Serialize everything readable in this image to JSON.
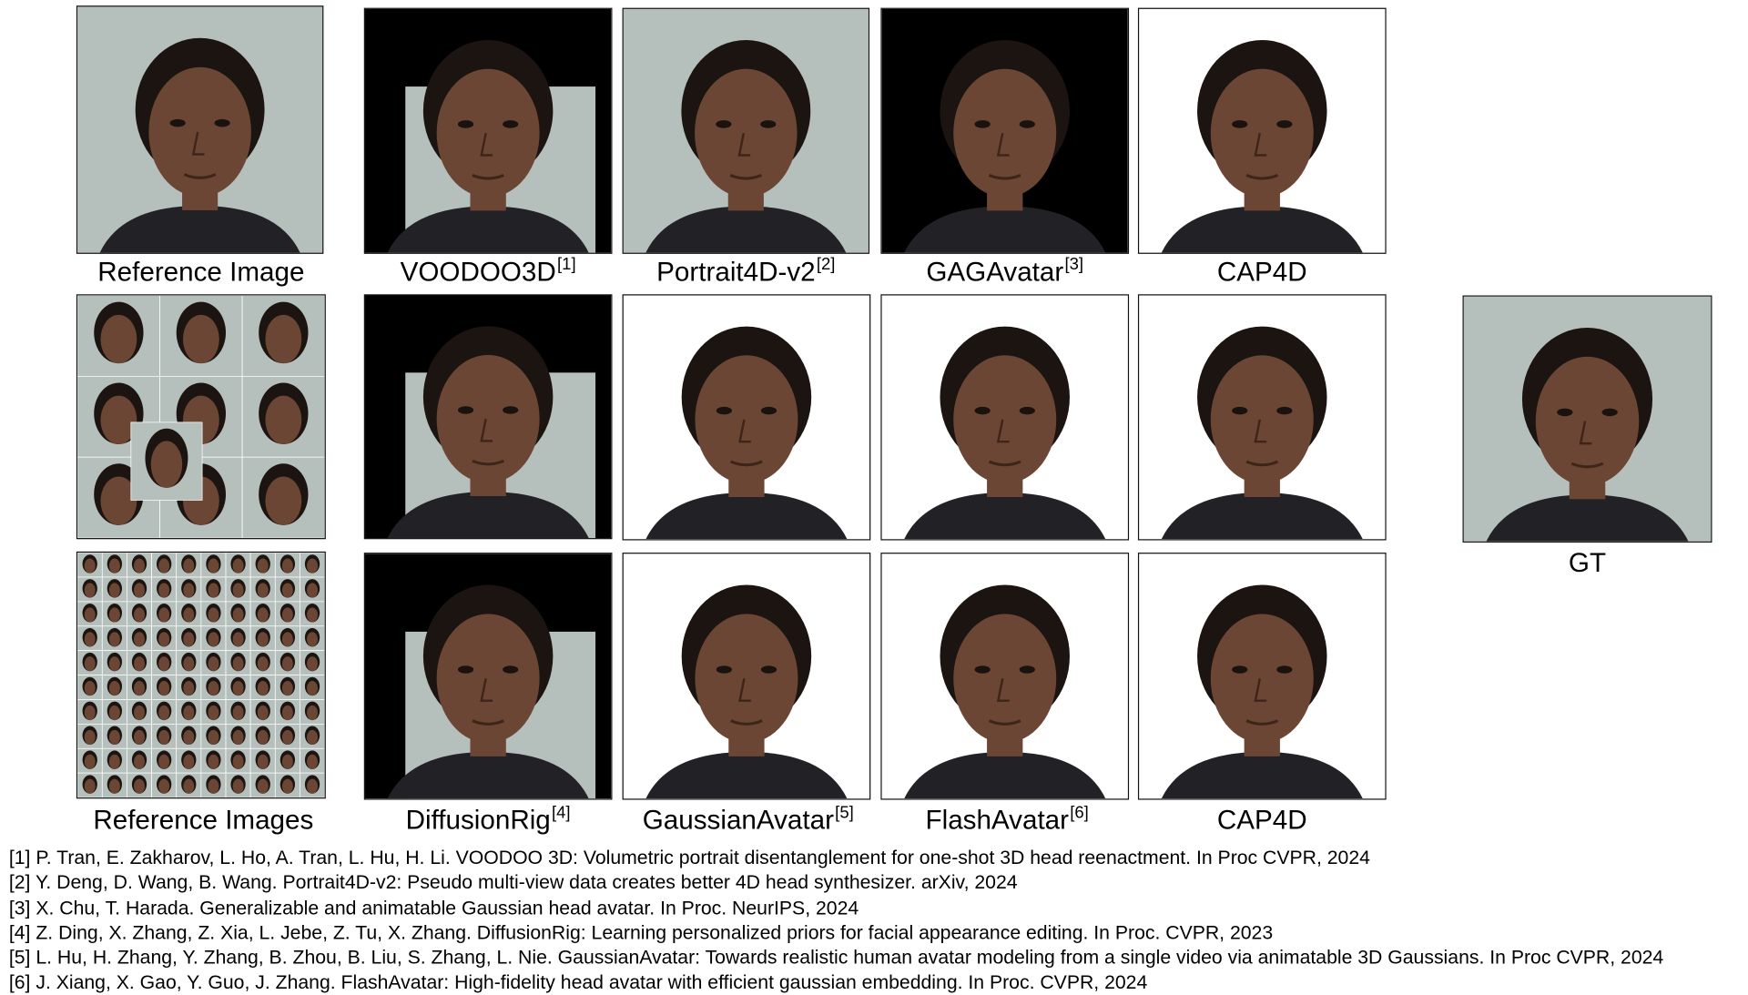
{
  "figure": {
    "rows": [
      {
        "reference_label": "Reference Image",
        "methods": [
          {
            "name": "VOODOO3D",
            "ref": "[1]"
          },
          {
            "name": "Portrait4D-v2",
            "ref": "[2]"
          },
          {
            "name": "GAGAvatar",
            "ref": "[3]"
          },
          {
            "name": "CAP4D",
            "ref": ""
          }
        ]
      },
      {
        "reference_label": "",
        "methods": []
      },
      {
        "reference_label": "Reference Images",
        "methods": [
          {
            "name": "DiffusionRig",
            "ref": "[4]"
          },
          {
            "name": "GaussianAvatar",
            "ref": "[5]"
          },
          {
            "name": "FlashAvatar",
            "ref": "[6]"
          },
          {
            "name": "CAP4D",
            "ref": ""
          }
        ]
      }
    ],
    "gt_label": "GT",
    "colors": {
      "gray_background": "#b5bfbc",
      "black_background": "#000000",
      "white_background": "#ffffff",
      "skin": "#6b4634",
      "hair": "#1c1411",
      "shirt": "#222226"
    }
  },
  "references": [
    "[1] P. Tran, E. Zakharov, L. Ho, A. Tran, L. Hu,  H. Li. VOODOO 3D: Volumetric portrait disentanglement for one-shot 3D head reenactment. In Proc CVPR, 2024",
    "[2] Y. Deng, D. Wang, B. Wang. Portrait4D-v2: Pseudo multi-view data creates better 4D head synthesizer. arXiv, 2024",
    "[3] X. Chu, T. Harada. Generalizable and animatable Gaussian head  avatar. In Proc. NeurIPS, 2024",
    "[4] Z. Ding, X. Zhang, Z. Xia, L. Jebe, Z. Tu, X. Zhang. DiffusionRig: Learning personalized priors for facial appearance editing. In Proc. CVPR, 2023",
    "[5] L. Hu, H. Zhang, Y. Zhang, B. Zhou, B. Liu, S. Zhang, L. Nie. GaussianAvatar: Towards realistic human avatar modeling from a single video via animatable 3D Gaussians. In Proc CVPR, 2024",
    "[6] J. Xiang, X. Gao, Y. Guo, J. Zhang. FlashAvatar: High-fidelity head avatar with efficient gaussian embedding. In Proc. CVPR, 2024"
  ]
}
